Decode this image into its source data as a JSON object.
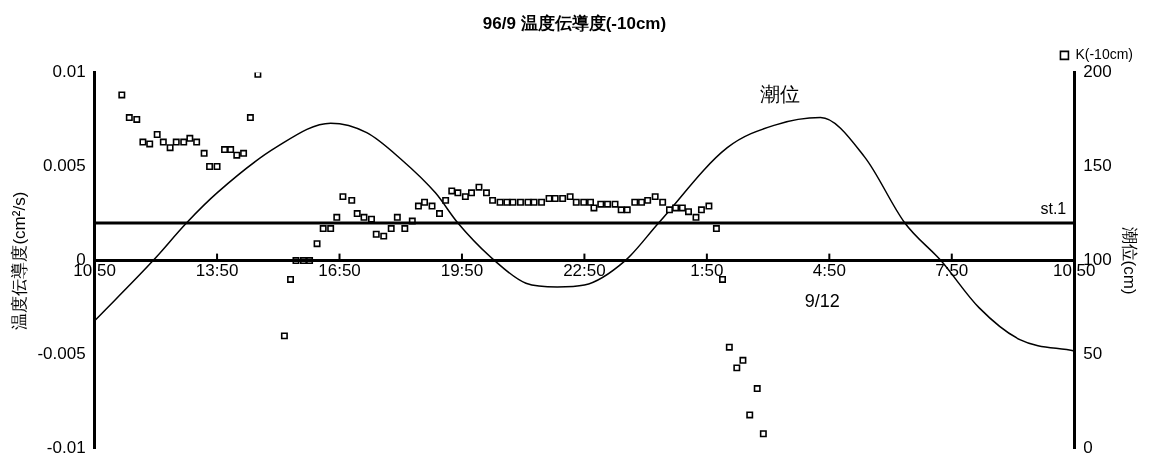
{
  "chart_data": {
    "type": "scatter",
    "title": "96/9 温度伝導度(-10cm)",
    "ylabel": "温度伝導度(cm²/s)",
    "y2label": "潮位(cm)",
    "xlim": [
      "--09-11T10:50",
      "--09-12T10:50"
    ],
    "xticks": [
      {
        "value": "--09-11T10:50",
        "label": "10:50"
      },
      {
        "value": "--09-11T13:50",
        "label": "13:50"
      },
      {
        "value": "--09-11T16:50",
        "label": "16:50"
      },
      {
        "value": "--09-11T19:50",
        "label": "19:50"
      },
      {
        "value": "--09-11T22:50",
        "label": "22:50"
      },
      {
        "value": "--09-12T01:50",
        "label": "1:50"
      },
      {
        "value": "--09-12T04:50",
        "label": "4:50"
      },
      {
        "value": "--09-12T07:50",
        "label": "7:50"
      },
      {
        "value": "--09-12T10:50",
        "label": "10:50"
      }
    ],
    "ylim": [
      -0.01,
      0.01
    ],
    "yticks": [
      -0.01,
      -0.005,
      0,
      0.005,
      0.01
    ],
    "y2lim": [
      0,
      200
    ],
    "y2ticks": [
      0,
      50,
      100,
      150,
      200
    ],
    "legend": "top right",
    "series": [
      {
        "name": "K(-10cm)",
        "marker": "square",
        "color": "#000000",
        "x": [
          "--09-11T11:30",
          "--09-11T11:41",
          "--09-11T11:52",
          "--09-11T12:01",
          "--09-11T12:11",
          "--09-11T12:22",
          "--09-11T12:31",
          "--09-11T12:41",
          "--09-11T12:50",
          "--09-11T13:01",
          "--09-11T13:10",
          "--09-11T13:20",
          "--09-11T13:31",
          "--09-11T13:39",
          "--09-11T13:50",
          "--09-11T14:01",
          "--09-11T14:10",
          "--09-11T14:19",
          "--09-11T14:29",
          "--09-11T14:39",
          "--09-11T14:50",
          "--09-11T15:29",
          "--09-11T15:38",
          "--09-11T15:46",
          "--09-11T15:57",
          "--09-11T16:06",
          "--09-11T16:17",
          "--09-11T16:26",
          "--09-11T16:37",
          "--09-11T16:46",
          "--09-11T16:55",
          "--09-11T17:08",
          "--09-11T17:16",
          "--09-11T17:26",
          "--09-11T17:37",
          "--09-11T17:44",
          "--09-11T17:55",
          "--09-11T18:06",
          "--09-11T18:15",
          "--09-11T18:26",
          "--09-11T18:37",
          "--09-11T18:46",
          "--09-11T18:55",
          "--09-11T19:06",
          "--09-11T19:17",
          "--09-11T19:26",
          "--09-11T19:35",
          "--09-11T19:44",
          "--09-11T19:55",
          "--09-11T20:04",
          "--09-11T20:15",
          "--09-11T20:26",
          "--09-11T20:35",
          "--09-11T20:46",
          "--09-11T20:56",
          "--09-11T21:05",
          "--09-11T21:16",
          "--09-11T21:27",
          "--09-11T21:36",
          "--09-11T21:47",
          "--09-11T21:58",
          "--09-11T22:07",
          "--09-11T22:18",
          "--09-11T22:29",
          "--09-11T22:38",
          "--09-11T22:49",
          "--09-11T22:59",
          "--09-11T23:04",
          "--09-11T23:14",
          "--09-11T23:24",
          "--09-11T23:35",
          "--09-11T23:44",
          "--09-11T23:53",
          "--09-12T00:04",
          "--09-12T00:14",
          "--09-12T00:23",
          "--09-12T00:34",
          "--09-12T00:45",
          "--09-12T00:55",
          "--09-12T01:04",
          "--09-12T01:14",
          "--09-12T01:23",
          "--09-12T01:34",
          "--09-12T01:42",
          "--09-12T01:53",
          "--09-12T02:04",
          "--09-12T02:13",
          "--09-12T02:23",
          "--09-12T02:34",
          "--09-12T02:43",
          "--09-12T02:53",
          "--09-12T03:04",
          "--09-12T03:13"
        ],
        "values": [
          0.0088,
          0.0076,
          0.0075,
          0.0063,
          0.0062,
          0.0067,
          0.0063,
          0.006,
          0.0063,
          0.0063,
          0.0065,
          0.0063,
          0.0057,
          0.005,
          0.005,
          0.0059,
          0.0059,
          0.0056,
          0.0057,
          0.0076,
          0.0099,
          -0.004,
          -0.001,
          0,
          0,
          0,
          0.0009,
          0.0017,
          0.0017,
          0.0023,
          0.0034,
          0.0032,
          0.0025,
          0.0023,
          0.0022,
          0.0014,
          0.0013,
          0.0017,
          0.0023,
          0.0017,
          0.0021,
          0.0029,
          0.0031,
          0.0029,
          0.0025,
          0.0032,
          0.0037,
          0.0036,
          0.0034,
          0.0036,
          0.0039,
          0.0036,
          0.0032,
          0.0031,
          0.0031,
          0.0031,
          0.0031,
          0.0031,
          0.0031,
          0.0031,
          0.0033,
          0.0033,
          0.0033,
          0.0034,
          0.0031,
          0.0031,
          0.0031,
          0.0028,
          0.003,
          0.003,
          0.003,
          0.0027,
          0.0027,
          0.0031,
          0.0031,
          0.0032,
          0.0034,
          0.0031,
          0.0027,
          0.0028,
          0.0028,
          0.0026,
          0.0023,
          0.0027,
          0.0029,
          0.0017,
          -0.001,
          -0.0046,
          -0.0057,
          -0.0053,
          -0.0082,
          -0.0068,
          -0.0092
        ]
      },
      {
        "name": "潮位",
        "type": "line",
        "axis": "y2",
        "marker": "none",
        "color": "#000000",
        "x": [
          "--09-11T10:50",
          "--09-11T12:16",
          "--09-11T13:05",
          "--09-11T13:50",
          "--09-11T15:16",
          "--09-11T16:37",
          "--09-11T17:30",
          "--09-11T18:20",
          "--09-11T19:11",
          "--09-11T19:44",
          "--09-11T20:38",
          "--09-11T21:24",
          "--09-11T22:10",
          "--09-11T22:50",
          "--09-11T23:50",
          "--09-12T00:39",
          "--09-12T02:20",
          "--09-12T03:30",
          "--09-12T04:37",
          "--09-12T05:42",
          "--09-12T06:41",
          "--09-12T07:34",
          "--09-12T08:30",
          "--09-12T09:30",
          "--09-12T10:50"
        ],
        "values": [
          68,
          100,
          120,
          136,
          160,
          173,
          168,
          154,
          136,
          120,
          100,
          88,
          86,
          87,
          100,
          120,
          160,
          172,
          176,
          155,
          120,
          100,
          75,
          58,
          52
        ]
      }
    ],
    "ref_lines": [
      {
        "axis": "y",
        "value": 0.002,
        "label": "st.1"
      }
    ],
    "annotations": [
      "9/12"
    ]
  }
}
